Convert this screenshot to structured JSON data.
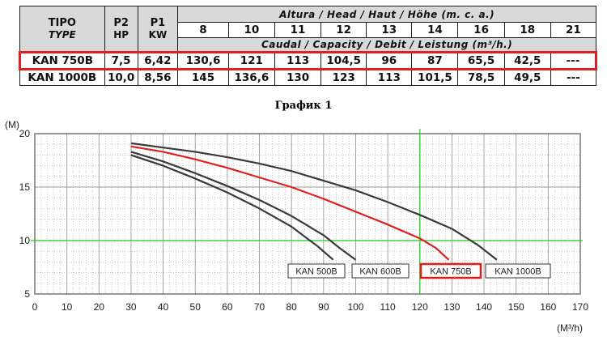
{
  "table": {
    "tipo": "TIPO",
    "type": "TYPE",
    "p2": "P2",
    "p2_unit": "HP",
    "p1": "P1",
    "p1_unit": "KW",
    "head_band": "Altura / Head / Haut / Höhe (m. c. a.)",
    "flow_band": "Caudal / Capacity / Debit / Leistung (m³/h.)",
    "heads": [
      "8",
      "10",
      "11",
      "12",
      "13",
      "14",
      "16",
      "18",
      "21"
    ],
    "rows": [
      {
        "model": "KAN 750B",
        "p2": "7,5",
        "p1": "6,42",
        "flows": [
          "130,6",
          "121",
          "113",
          "104,5",
          "96",
          "87",
          "65,5",
          "42,5",
          "---"
        ]
      },
      {
        "model": "KAN 1000B",
        "p2": "10,0",
        "p1": "8,56",
        "flows": [
          "145",
          "136,6",
          "130",
          "123",
          "113",
          "101,5",
          "78,5",
          "49,5",
          "---"
        ]
      }
    ]
  },
  "graph_caption": "График 1",
  "colors": {
    "highlight": "#e02020",
    "guide": "#22cc22",
    "curve": "#3a3a3a",
    "grid": "#9a9a9a"
  },
  "chart_data": {
    "type": "line",
    "ylabel": "(M)",
    "xlabel": "(M³/h)",
    "xlim": [
      0,
      170
    ],
    "ylim": [
      5,
      20
    ],
    "xticks": [
      "0",
      "10",
      "20",
      "30",
      "40",
      "50",
      "60",
      "70",
      "80",
      "90",
      "100",
      "110",
      "120",
      "130",
      "140",
      "150",
      "160",
      "170"
    ],
    "yticks": [
      "5",
      "10",
      "15",
      "20"
    ],
    "grid": true,
    "reference_lines": {
      "x": 120,
      "y": 10
    },
    "series": [
      {
        "name": "KAN 500B",
        "highlight": false,
        "x": [
          30,
          40,
          50,
          60,
          70,
          80,
          88,
          93
        ],
        "y": [
          18.0,
          17.0,
          15.8,
          14.5,
          13.0,
          11.3,
          9.5,
          8.2
        ]
      },
      {
        "name": "KAN 600B",
        "highlight": false,
        "x": [
          30,
          40,
          50,
          60,
          70,
          80,
          90,
          95,
          100
        ],
        "y": [
          18.3,
          17.4,
          16.3,
          15.1,
          13.8,
          12.3,
          10.5,
          9.3,
          8.2
        ]
      },
      {
        "name": "KAN 750B",
        "highlight": true,
        "x": [
          30,
          40,
          50,
          60,
          70,
          80,
          90,
          100,
          110,
          120,
          125,
          129
        ],
        "y": [
          18.8,
          18.3,
          17.6,
          16.8,
          15.9,
          15.0,
          13.9,
          12.7,
          11.5,
          10.2,
          9.3,
          8.2
        ]
      },
      {
        "name": "KAN 1000B",
        "highlight": false,
        "x": [
          30,
          40,
          50,
          60,
          70,
          80,
          90,
          100,
          110,
          120,
          130,
          138,
          144
        ],
        "y": [
          19.1,
          18.7,
          18.3,
          17.8,
          17.2,
          16.5,
          15.6,
          14.7,
          13.6,
          12.4,
          11.1,
          9.6,
          8.2
        ]
      }
    ]
  }
}
